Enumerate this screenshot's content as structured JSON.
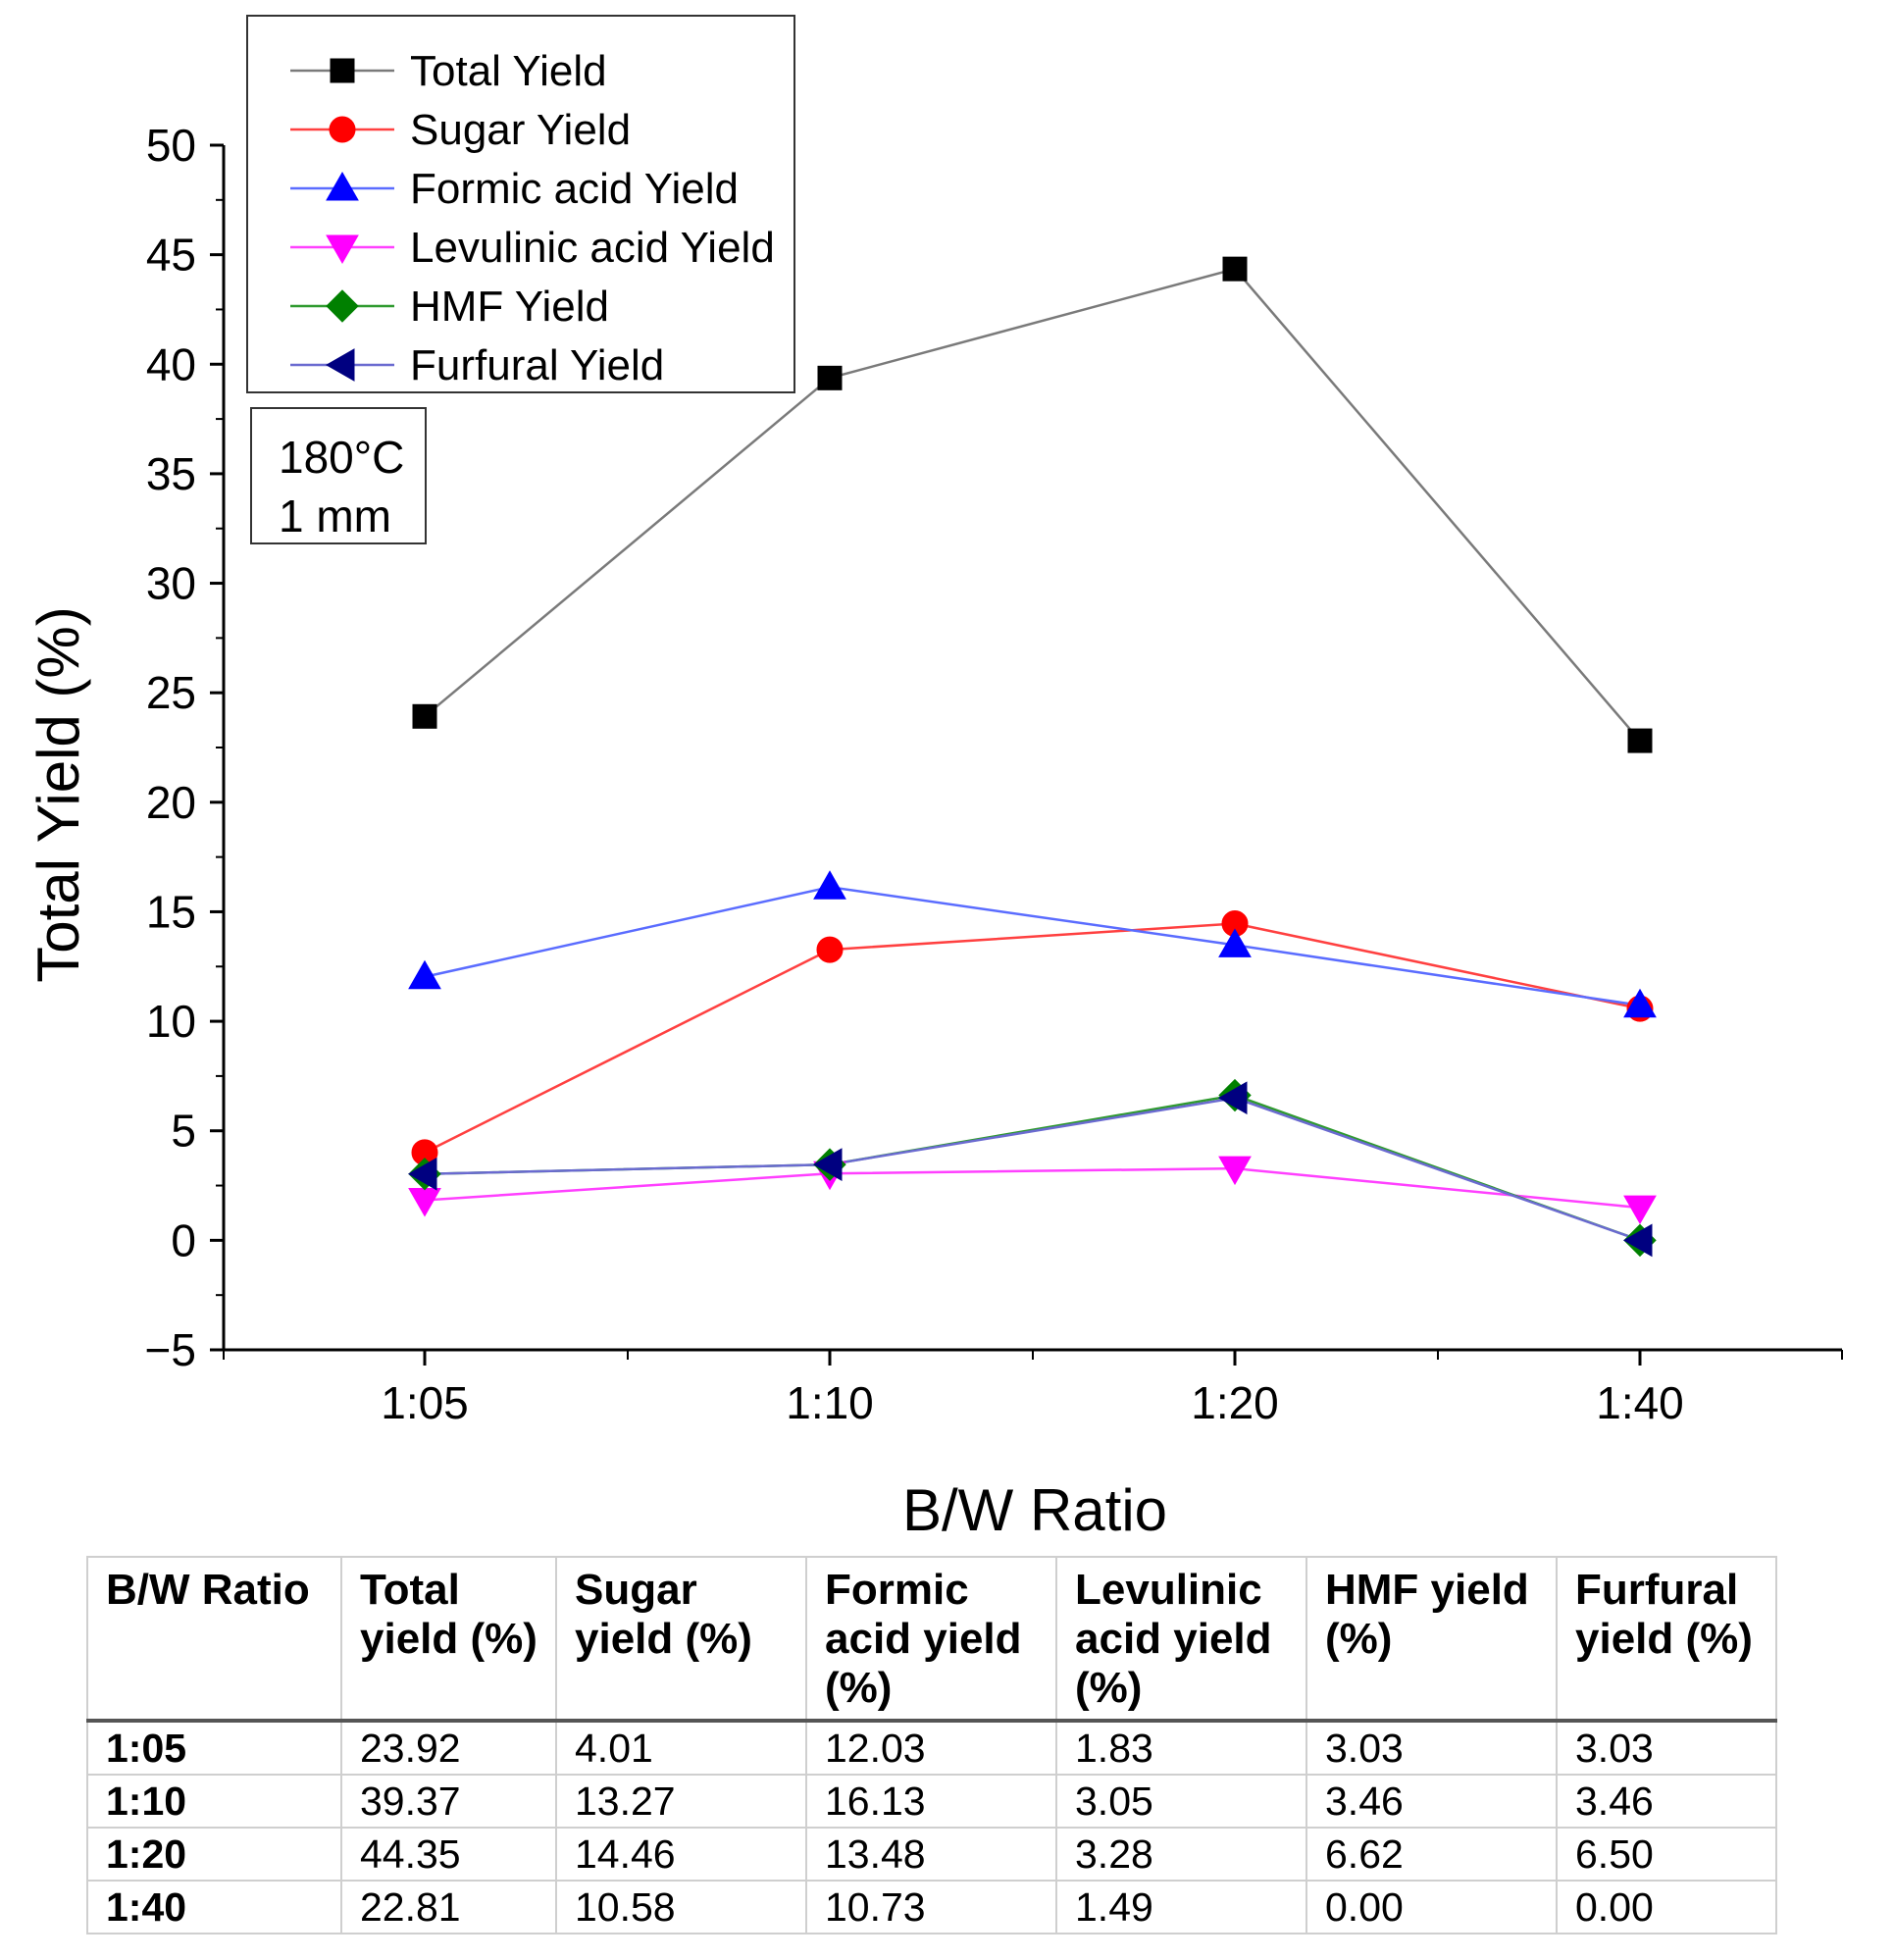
{
  "chart_data": {
    "type": "line",
    "xlabel": "B/W Ratio",
    "ylabel": "Total Yield (%)",
    "categories": [
      "1:05",
      "1:10",
      "1:20",
      "1:40"
    ],
    "ylim": [
      -5,
      50
    ],
    "yticks": [
      -5,
      0,
      5,
      10,
      15,
      20,
      25,
      30,
      35,
      40,
      45,
      50
    ],
    "legend_position": "top-left",
    "annotation": [
      "180°C",
      "1 mm"
    ],
    "series": [
      {
        "name": "Total Yield",
        "color": "#000000",
        "line_color": "#7a7a7a",
        "marker": "square",
        "values": [
          23.92,
          39.37,
          44.35,
          22.81
        ]
      },
      {
        "name": "Sugar Yield",
        "color": "#ff0000",
        "line_color": "#ff4040",
        "marker": "circle",
        "values": [
          4.01,
          13.27,
          14.46,
          10.58
        ]
      },
      {
        "name": "Formic acid Yield",
        "color": "#0000ff",
        "line_color": "#5a6cff",
        "marker": "triangle-up",
        "values": [
          12.03,
          16.13,
          13.48,
          10.73
        ]
      },
      {
        "name": "Levulinic acid Yield",
        "color": "#ff00ff",
        "line_color": "#ff40ff",
        "marker": "triangle-down",
        "values": [
          1.83,
          3.05,
          3.28,
          1.49
        ]
      },
      {
        "name": "HMF Yield",
        "color": "#008000",
        "line_color": "#2f9a2f",
        "marker": "diamond",
        "values": [
          3.03,
          3.46,
          6.62,
          0.0
        ]
      },
      {
        "name": "Furfural Yield",
        "color": "#000080",
        "line_color": "#6a6ad0",
        "marker": "triangle-left",
        "values": [
          3.03,
          3.46,
          6.5,
          0.0
        ]
      }
    ]
  },
  "table": {
    "headers": [
      "B/W Ratio",
      "Total yield (%)",
      "Sugar yield (%)",
      "Formic acid yield (%)",
      "Levulinic acid yield (%)",
      "HMF yield (%)",
      "Furfural yield (%)"
    ],
    "rows": [
      [
        "1:05",
        "23.92",
        "4.01",
        "12.03",
        "1.83",
        "3.03",
        "3.03"
      ],
      [
        "1:10",
        "39.37",
        "13.27",
        "16.13",
        "3.05",
        "3.46",
        "3.46"
      ],
      [
        "1:20",
        "44.35",
        "14.46",
        "13.48",
        "3.28",
        "6.62",
        "6.50"
      ],
      [
        "1:40",
        "22.81",
        "10.58",
        "10.73",
        "1.49",
        "0.00",
        "0.00"
      ]
    ]
  }
}
